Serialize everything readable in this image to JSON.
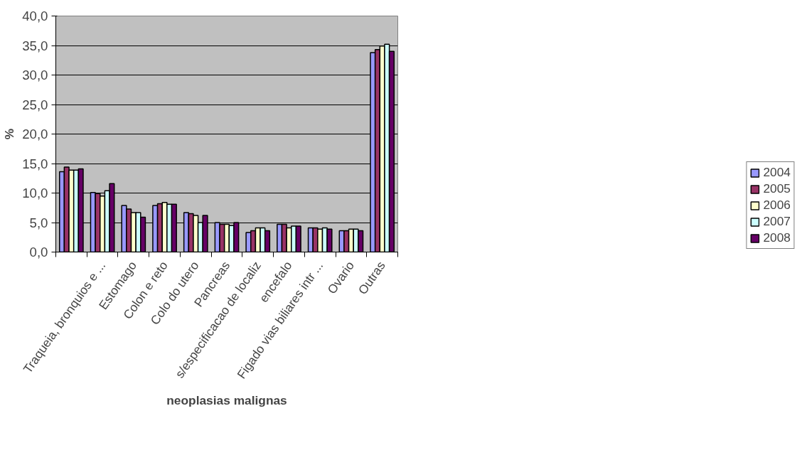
{
  "chart_data": {
    "type": "bar",
    "xlabel": "neoplasias malignas",
    "ylabel": "%",
    "categories": [
      null,
      "Traqueia, bronquios e ...",
      "Estomago",
      "Colon e reto",
      "Colo do utero",
      "Pancreas",
      "s/especificacao de localiz",
      "encefalo",
      "Figado vias biliares intr ...",
      "Ovario",
      "Outras"
    ],
    "series": [
      {
        "name": "2004",
        "color": "#9999ff",
        "values": [
          13.6,
          10.1,
          7.9,
          7.9,
          6.7,
          5.0,
          3.3,
          4.7,
          4.1,
          3.6,
          33.8
        ]
      },
      {
        "name": "2005",
        "color": "#993366",
        "values": [
          14.4,
          9.9,
          7.3,
          8.2,
          6.5,
          4.7,
          3.6,
          4.7,
          4.1,
          3.6,
          34.3
        ]
      },
      {
        "name": "2006",
        "color": "#ffffcc",
        "values": [
          13.9,
          9.5,
          6.7,
          8.4,
          6.2,
          4.7,
          4.1,
          4.1,
          3.9,
          3.9,
          34.9
        ]
      },
      {
        "name": "2007",
        "color": "#ccffff",
        "values": [
          13.9,
          10.4,
          6.7,
          8.1,
          5.0,
          4.5,
          4.1,
          4.4,
          4.1,
          3.9,
          35.2
        ]
      },
      {
        "name": "2008",
        "color": "#660066",
        "values": [
          14.1,
          11.6,
          5.9,
          8.1,
          6.2,
          5.0,
          3.6,
          4.4,
          3.9,
          3.6,
          34.0
        ]
      }
    ],
    "ylim": [
      0,
      40
    ],
    "yticks": [
      {
        "value": 0,
        "label": "0,0"
      },
      {
        "value": 5,
        "label": "5,0"
      },
      {
        "value": 10,
        "label": "10,0"
      },
      {
        "value": 15,
        "label": "15,0"
      },
      {
        "value": 20,
        "label": "20,0"
      },
      {
        "value": 25,
        "label": "25,0"
      },
      {
        "value": 30,
        "label": "30,0"
      },
      {
        "value": 35,
        "label": "35,0"
      },
      {
        "value": 40,
        "label": "40,0"
      }
    ],
    "grid": "y",
    "legend": "right"
  }
}
